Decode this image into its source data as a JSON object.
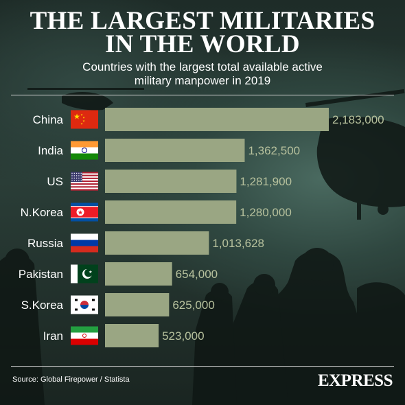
{
  "header": {
    "title_line1": "THE LARGEST MILITARIES",
    "title_line2": "IN THE WORLD",
    "subtitle_line1": "Countries with the largest total available active",
    "subtitle_line2": "military manpower in 2019"
  },
  "footer": {
    "source": "Source: Global Firepower / Statista",
    "brand": "EXPRESS"
  },
  "colors": {
    "bar": "#9aa683",
    "value_label": "#b7c19d",
    "country_label": "#ffffff"
  },
  "chart_data": {
    "type": "bar",
    "orientation": "horizontal",
    "categories": [
      "China",
      "India",
      "US",
      "N.Korea",
      "Russia",
      "Pakistan",
      "S.Korea",
      "Iran"
    ],
    "values": [
      2183000,
      1362500,
      1281900,
      1280000,
      1013628,
      654000,
      625000,
      523000
    ],
    "value_labels": [
      "2,183,000",
      "1,362,500",
      "1,281,900",
      "1,280,000",
      "1,013,628",
      "654,000",
      "625,000",
      "523,000"
    ],
    "flags": [
      "china-flag-icon",
      "india-flag-icon",
      "us-flag-icon",
      "north-korea-flag-icon",
      "russia-flag-icon",
      "pakistan-flag-icon",
      "south-korea-flag-icon",
      "iran-flag-icon"
    ],
    "xlim": [
      0,
      2183000
    ],
    "grid": false,
    "legend": "none"
  }
}
